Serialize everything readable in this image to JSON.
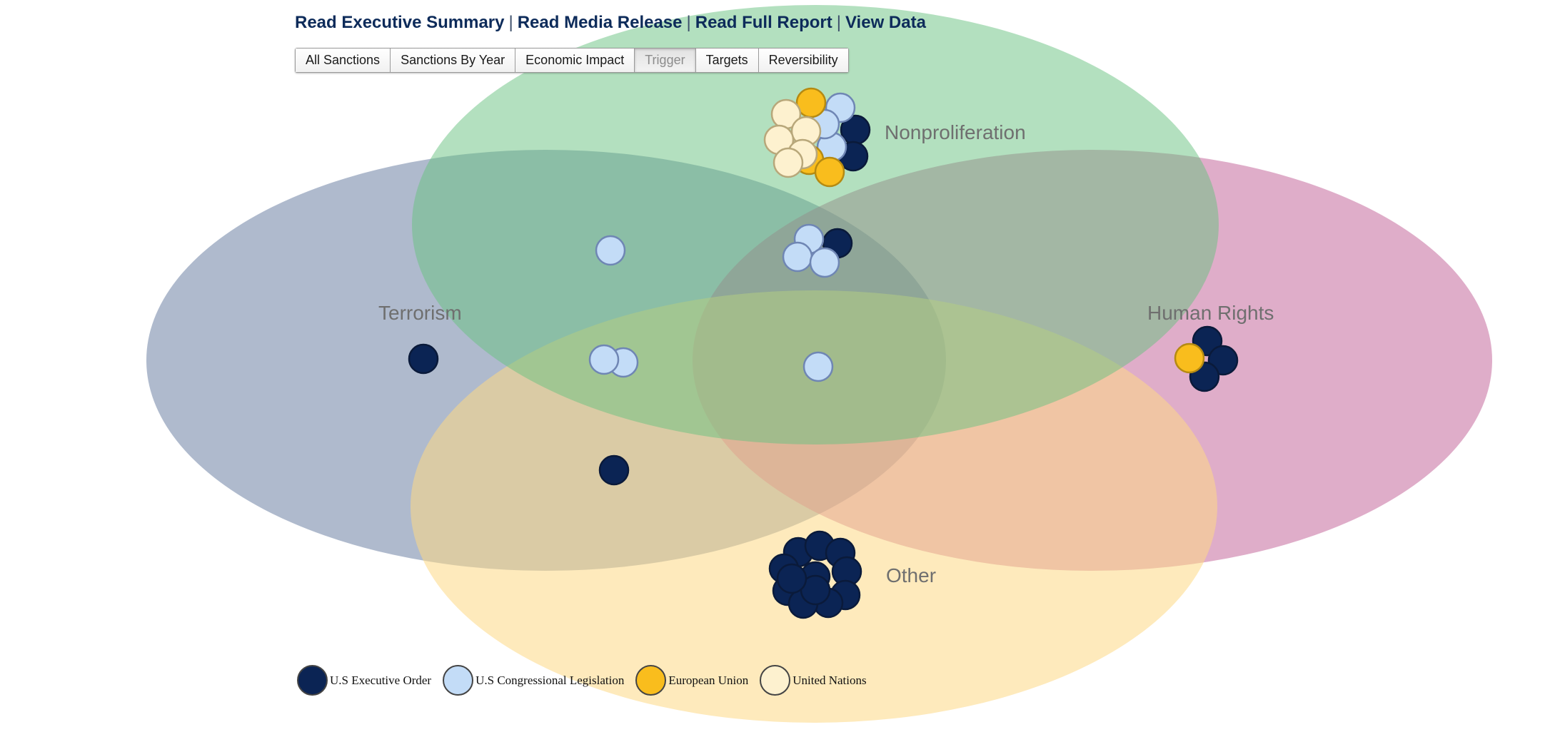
{
  "links": {
    "summary": "Read Executive Summary",
    "media": "Read Media Release",
    "report": "Read Full Report",
    "data": "View Data",
    "separator": "|"
  },
  "tabs": {
    "all": "All Sanctions",
    "by_year": "Sanctions By Year",
    "economic": "Economic Impact",
    "trigger": "Trigger",
    "targets": "Targets",
    "reversibility": "Reversibility",
    "active": "Trigger"
  },
  "sets": {
    "nonproliferation": "Nonproliferation",
    "terrorism": "Terrorism",
    "human_rights": "Human Rights",
    "other": "Other"
  },
  "colors": {
    "nonproliferation_fill": "#68c17f",
    "terrorism_fill": "#6e82a4",
    "human_rights_fill": "#c05b93",
    "other_fill": "#fdd885",
    "set_label": "#6f6f6f",
    "link": "#0d2b5a"
  },
  "legend": {
    "executive_order": {
      "label": "U.S Executive Order",
      "color": "#0b2454"
    },
    "congressional": {
      "label": "U.S Congressional Legislation",
      "color": "#c3dcf7"
    },
    "eu": {
      "label": "European Union",
      "color": "#f9bd1d"
    },
    "un": {
      "label": "United Nations",
      "color": "#fdf1cf"
    }
  },
  "chart_data": {
    "type": "venn",
    "sets": [
      "Nonproliferation",
      "Terrorism",
      "Human Rights",
      "Other"
    ],
    "series": [
      "U.S Executive Order",
      "U.S Congressional Legislation",
      "European Union",
      "United Nations"
    ],
    "regions": [
      {
        "sets": [
          "Nonproliferation"
        ],
        "counts": {
          "U.S Executive Order": 2,
          "U.S Congressional Legislation": 3,
          "European Union": 3,
          "United Nations": 5
        }
      },
      {
        "sets": [
          "Terrorism",
          "Nonproliferation"
        ],
        "counts": {
          "U.S Congressional Legislation": 1
        }
      },
      {
        "sets": [
          "Nonproliferation",
          "Human Rights"
        ],
        "counts": {
          "U.S Executive Order": 1,
          "U.S Congressional Legislation": 3
        }
      },
      {
        "sets": [
          "Terrorism"
        ],
        "counts": {
          "U.S Executive Order": 1
        }
      },
      {
        "sets": [
          "Terrorism",
          "Nonproliferation",
          "Other"
        ],
        "counts": {
          "U.S Congressional Legislation": 2
        }
      },
      {
        "sets": [
          "Nonproliferation",
          "Human Rights",
          "Other"
        ],
        "counts": {
          "U.S Congressional Legislation": 1
        }
      },
      {
        "sets": [
          "Terrorism",
          "Other"
        ],
        "counts": {
          "U.S Executive Order": 1
        }
      },
      {
        "sets": [
          "Human Rights"
        ],
        "counts": {
          "U.S Executive Order": 3,
          "European Union": 1
        }
      },
      {
        "sets": [
          "Other"
        ],
        "counts": {
          "U.S Executive Order": 12
        }
      }
    ]
  }
}
